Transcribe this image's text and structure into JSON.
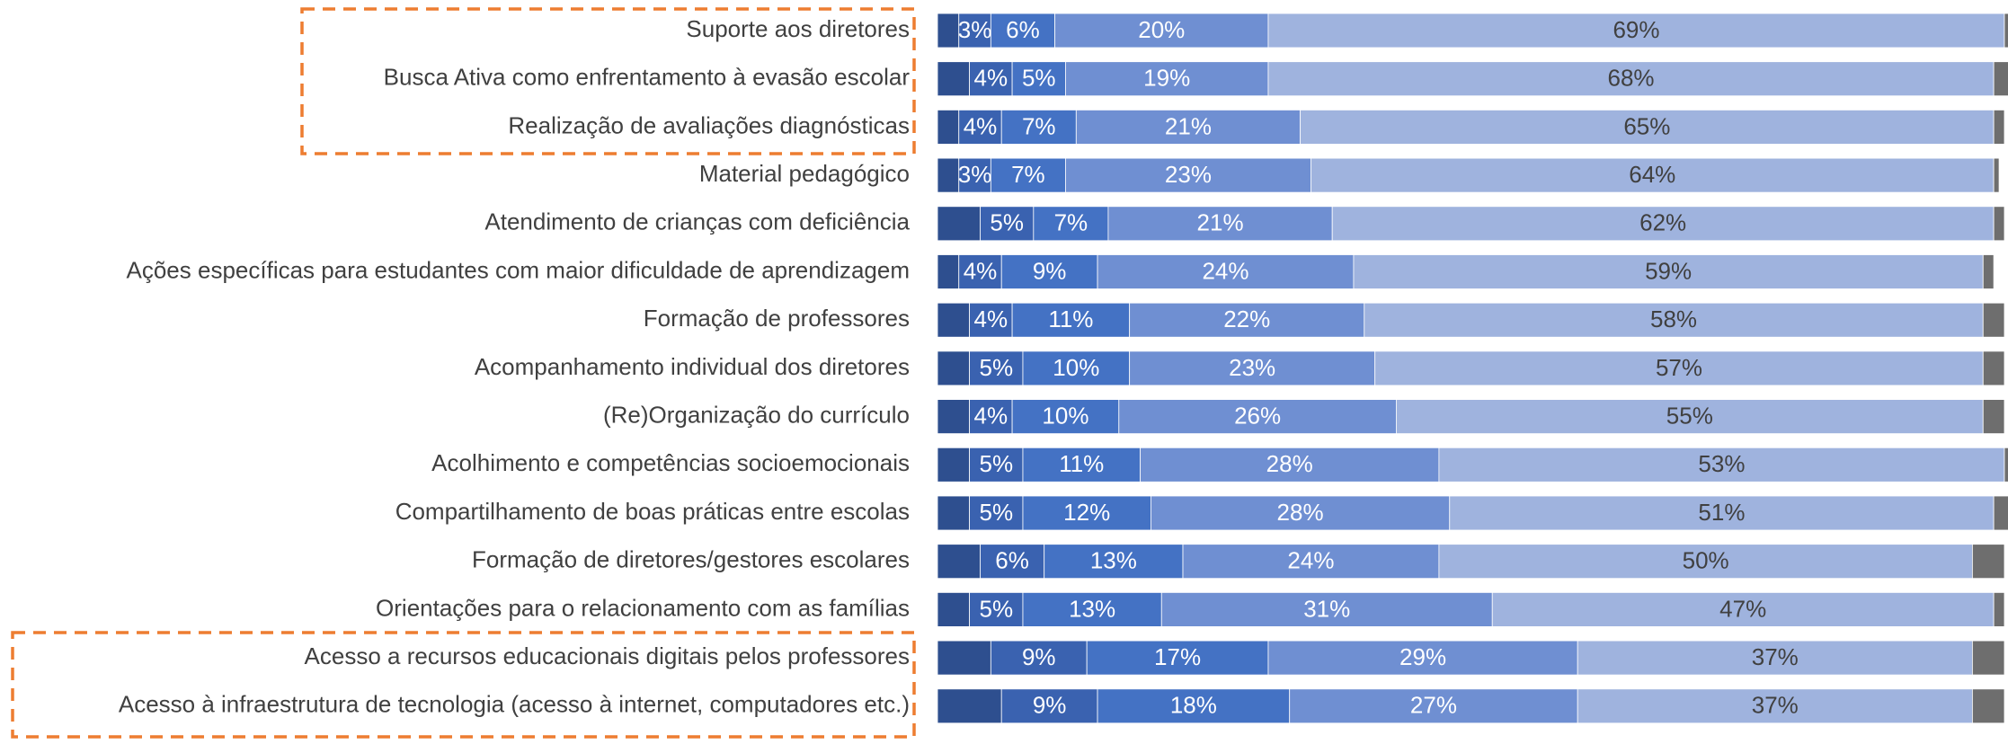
{
  "chart_data": {
    "type": "stacked_bar_horizontal",
    "categories": [
      "Suporte aos diretores",
      "Busca Ativa como enfrentamento à evasão escolar",
      "Realização de avaliações diagnósticas",
      "Material pedagógico",
      "Atendimento de crianças com deficiência",
      "Ações específicas para estudantes com maior dificuldade de aprendizagem",
      "Formação de professores",
      "Acompanhamento individual dos diretores",
      "(Re)Organização do currículo",
      "Acolhimento e competências socioemocionais",
      "Compartilhamento de boas práticas entre escolas",
      "Formação de diretores/gestores escolares",
      "Orientações para o relacionamento com as famílias",
      "Acesso a recursos educacionais digitais pelos professores",
      "Acesso à infraestrutura de tecnologia (acesso à internet, computadores etc.)"
    ],
    "xlim": [
      0,
      100
    ],
    "series": [
      {
        "color": "#2e4f8f",
        "values": [
          2,
          3,
          2,
          2,
          4,
          2,
          3,
          3,
          3,
          3,
          3,
          4,
          3,
          5,
          6
        ]
      },
      {
        "color": "#3a62b0",
        "values": [
          3,
          4,
          4,
          3,
          5,
          4,
          4,
          5,
          4,
          5,
          5,
          6,
          5,
          9,
          9
        ],
        "value_labels": [
          "3%",
          "4%",
          "4%",
          "3%",
          "5%",
          "4%",
          "4%",
          "5%",
          "4%",
          "5%",
          "5%",
          "6%",
          "5%",
          "9%",
          "9%"
        ]
      },
      {
        "color": "#4472c4",
        "values": [
          6,
          5,
          7,
          7,
          7,
          9,
          11,
          10,
          10,
          11,
          12,
          13,
          13,
          17,
          18
        ],
        "value_labels": [
          "6%",
          "5%",
          "7%",
          "7%",
          "7%",
          "9%",
          "11%",
          "10%",
          "10%",
          "11%",
          "12%",
          "13%",
          "13%",
          "17%",
          "18%"
        ]
      },
      {
        "color": "#6f8fd2",
        "values": [
          20,
          19,
          21,
          23,
          21,
          24,
          22,
          23,
          26,
          28,
          28,
          24,
          31,
          29,
          27
        ],
        "value_labels": [
          "20%",
          "19%",
          "21%",
          "23%",
          "21%",
          "24%",
          "22%",
          "23%",
          "26%",
          "28%",
          "28%",
          "24%",
          "31%",
          "29%",
          "27%"
        ]
      },
      {
        "color": "#9fb3de",
        "values": [
          69,
          68,
          65,
          64,
          62,
          59,
          58,
          57,
          55,
          53,
          51,
          50,
          47,
          37,
          37
        ],
        "value_labels": [
          "69%",
          "68%",
          "65%",
          "64%",
          "62%",
          "59%",
          "58%",
          "57%",
          "55%",
          "53%",
          "51%",
          "50%",
          "47%",
          "37%",
          "37%"
        ]
      },
      {
        "color": "#6e6e6e",
        "values": [
          1,
          2,
          1,
          0.5,
          1,
          1,
          2,
          2,
          2,
          1,
          2,
          3,
          1,
          3,
          3
        ]
      }
    ]
  }
}
